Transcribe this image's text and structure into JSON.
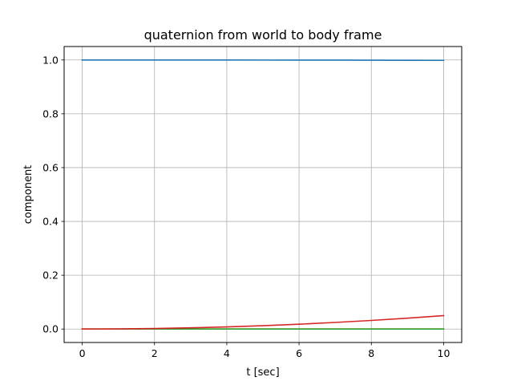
{
  "chart_data": {
    "type": "line",
    "title": "quaternion from world to body frame",
    "xlabel": "t [sec]",
    "ylabel": "component",
    "xlim": [
      -0.5,
      10.5
    ],
    "ylim": [
      -0.05,
      1.05
    ],
    "xticks": [
      0,
      2,
      4,
      6,
      8,
      10
    ],
    "yticks": [
      0.0,
      0.2,
      0.4,
      0.6,
      0.8,
      1.0
    ],
    "xtick_labels": [
      "0",
      "2",
      "4",
      "6",
      "8",
      "10"
    ],
    "ytick_labels": [
      "0.0",
      "0.2",
      "0.4",
      "0.6",
      "0.8",
      "1.0"
    ],
    "grid": true,
    "x": [
      0,
      1,
      2,
      3,
      4,
      5,
      6,
      7,
      8,
      9,
      10
    ],
    "series": [
      {
        "color": "#1f77b4",
        "values": [
          1.0,
          1.0,
          1.0,
          0.9999,
          0.9998,
          0.9997,
          0.9996,
          0.9994,
          0.9991,
          0.9989,
          0.9986
        ]
      },
      {
        "color": "#ff7f0e",
        "values": [
          0,
          0,
          0,
          0,
          0,
          0,
          0,
          0,
          0,
          0,
          0
        ]
      },
      {
        "color": "#2ca02c",
        "values": [
          0,
          0,
          0,
          0,
          0,
          0,
          0,
          0,
          0,
          0,
          0
        ]
      },
      {
        "color": "#d62728",
        "values": [
          0,
          0.0005,
          0.002,
          0.0045,
          0.008,
          0.0125,
          0.018,
          0.0245,
          0.032,
          0.0405,
          0.05
        ]
      }
    ]
  }
}
